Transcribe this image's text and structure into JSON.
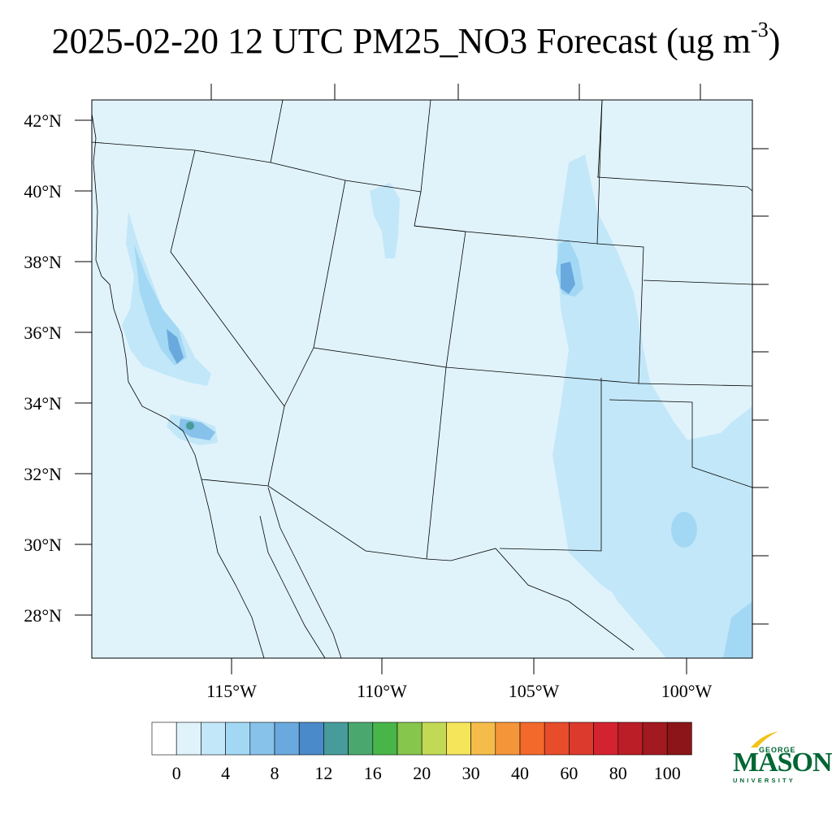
{
  "map": {
    "title_main": "2025-02-20 12 UTC PM25_NO3 Forecast (ug m",
    "title_exp": "-3",
    "title_close": ")",
    "lat_labels": [
      "42°N",
      "40°N",
      "38°N",
      "36°N",
      "34°N",
      "32°N",
      "30°N",
      "28°N"
    ],
    "lon_labels": [
      "115°W",
      "110°W",
      "105°W",
      "100°W"
    ],
    "colorbar": {
      "colors": [
        "#ffffff",
        "#e0f3fb",
        "#c2e7f8",
        "#a3d8f5",
        "#86c2ea",
        "#6aa9de",
        "#4a8acb",
        "#479b9b",
        "#4aa86f",
        "#48b548",
        "#86c64c",
        "#c2d955",
        "#f5e55a",
        "#f6bc4a",
        "#f5953a",
        "#f2692b",
        "#e74c2b",
        "#dc3a2d",
        "#d42330",
        "#bb1e26",
        "#a2191f",
        "#8b1518"
      ],
      "labels": [
        "0",
        "4",
        "8",
        "12",
        "16",
        "20",
        "30",
        "40",
        "60",
        "80",
        "100"
      ]
    }
  },
  "logo": {
    "top": "GEORGE",
    "main": "MASON",
    "bottom": "UNIVERSITY",
    "color": "#006633",
    "accent": "#f2c318"
  }
}
